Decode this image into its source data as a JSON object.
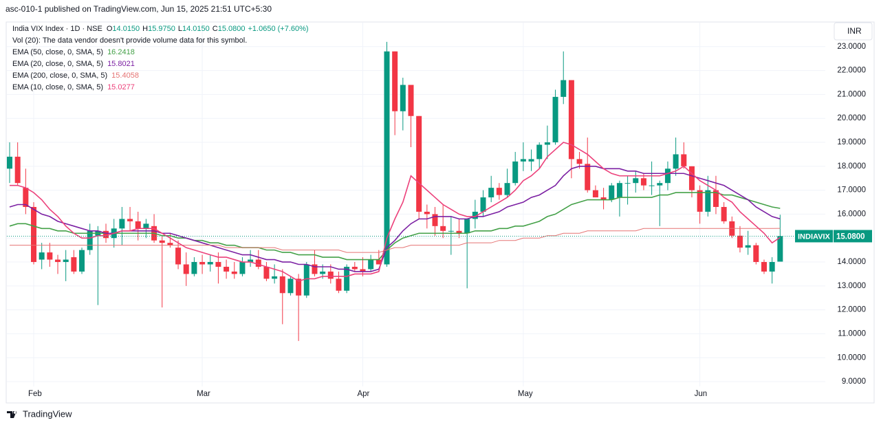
{
  "header": {
    "published": "asc-010-1 published on TradingView.com, Jun 15, 2025 21:51 UTC+5:30"
  },
  "footer": {
    "brand": "TradingView"
  },
  "chart_data": {
    "type": "candlestick",
    "symbol": "India VIX Index · 1D · NSE",
    "ohlc_legend": [
      {
        "label": "O",
        "value": "14.0150"
      },
      {
        "label": "H",
        "value": "15.9750"
      },
      {
        "label": "L",
        "value": "14.0150"
      },
      {
        "label": "C",
        "value": "15.0800"
      }
    ],
    "change": "+1.0650 (+7.60%)",
    "volume_note": "Vol (20): The data vendor doesn't provide volume data for this symbol.",
    "currency": "INR",
    "price_tag": {
      "symbol": "INDIAVIX",
      "value": "15.0800"
    },
    "up_color": "#089981",
    "down_color": "#f23645",
    "categories": [
      null,
      null,
      null,
      "Feb",
      null,
      null,
      null,
      null,
      null,
      null,
      null,
      null,
      null,
      null,
      null,
      null,
      null,
      null,
      null,
      null,
      null,
      null,
      null,
      null,
      "Mar",
      null,
      null,
      null,
      null,
      null,
      null,
      null,
      null,
      null,
      null,
      null,
      null,
      null,
      null,
      null,
      null,
      null,
      null,
      null,
      "Apr",
      null,
      null,
      null,
      null,
      null,
      null,
      null,
      null,
      null,
      null,
      null,
      null,
      null,
      null,
      null,
      null,
      null,
      null,
      null,
      "May",
      null,
      null,
      null,
      null,
      null,
      null,
      null,
      null,
      null,
      null,
      null,
      null,
      null,
      null,
      null,
      null,
      null,
      null,
      null,
      null,
      null,
      "Jun",
      null,
      null,
      null,
      null,
      null,
      null,
      null,
      null,
      null,
      null
    ],
    "open": [
      17.9,
      18.4,
      17.1,
      16.3,
      14.1,
      14.4,
      14.1,
      14.0,
      14.2,
      13.6,
      14.5,
      15.1,
      15.3,
      15.0,
      15.4,
      15.8,
      15.7,
      15.4,
      15.5,
      14.9,
      14.8,
      14.6,
      13.9,
      13.5,
      14.0,
      13.9,
      14.0,
      13.8,
      13.6,
      13.5,
      14.0,
      14.1,
      13.8,
      13.3,
      13.4,
      12.7,
      13.3,
      12.6,
      13.9,
      13.5,
      13.6,
      13.3,
      12.8,
      13.8,
      13.7,
      13.7,
      14.1,
      13.9,
      22.8,
      20.3,
      21.4,
      20.1,
      16.1,
      16.0,
      15.5,
      15.3,
      15.3,
      15.2,
      15.8,
      16.1,
      16.7,
      17.1,
      16.8,
      17.3,
      18.2,
      18.2,
      18.3,
      18.9,
      19.0,
      20.9,
      21.6,
      18.3,
      18.1,
      17.0,
      16.7,
      16.6,
      16.7,
      17.3,
      17.3,
      17.5,
      17.2,
      17.2,
      17.3,
      17.9,
      18.5,
      18.0,
      17.0,
      16.1,
      17.0,
      16.3,
      15.7,
      15.1,
      14.6,
      14.7,
      14.0,
      13.6,
      14.015
    ],
    "high": [
      19.0,
      19.0,
      17.9,
      16.5,
      14.8,
      14.8,
      14.3,
      14.5,
      14.5,
      14.6,
      15.6,
      15.5,
      15.6,
      15.8,
      16.3,
      16.3,
      16.1,
      15.8,
      16.0,
      15.1,
      15.2,
      14.9,
      14.4,
      14.2,
      14.3,
      14.3,
      14.4,
      14.1,
      14.0,
      14.2,
      14.5,
      14.5,
      14.0,
      13.9,
      13.7,
      13.4,
      13.5,
      14.0,
      14.5,
      13.9,
      13.9,
      13.6,
      13.9,
      14.0,
      14.2,
      14.3,
      14.5,
      23.2,
      22.8,
      21.7,
      21.4,
      20.1,
      16.4,
      16.3,
      16.4,
      15.9,
      15.8,
      15.8,
      16.6,
      17.0,
      17.6,
      17.3,
      17.9,
      18.6,
      19.0,
      18.7,
      19.0,
      19.7,
      21.2,
      22.8,
      21.6,
      18.6,
      19.2,
      17.2,
      17.1,
      17.3,
      17.4,
      17.6,
      17.8,
      17.7,
      18.2,
      17.4,
      18.2,
      19.2,
      19.0,
      18.0,
      17.2,
      17.6,
      17.6,
      16.5,
      15.9,
      15.5,
      15.3,
      14.8,
      14.1,
      14.2,
      15.975
    ],
    "low": [
      17.3,
      17.2,
      16.0,
      13.9,
      13.7,
      13.8,
      13.5,
      13.2,
      13.5,
      13.5,
      14.3,
      12.2,
      14.8,
      14.6,
      14.7,
      15.3,
      14.9,
      15.0,
      14.8,
      12.1,
      14.6,
      13.7,
      13.0,
      13.4,
      13.5,
      13.6,
      13.1,
      13.3,
      13.3,
      13.4,
      13.8,
      13.7,
      13.2,
      13.1,
      11.4,
      12.6,
      10.7,
      12.5,
      13.4,
      13.3,
      13.1,
      12.7,
      12.7,
      13.6,
      13.4,
      13.6,
      13.9,
      13.8,
      19.3,
      19.5,
      18.8,
      15.8,
      15.4,
      15.1,
      15.0,
      14.3,
      15.0,
      12.9,
      15.4,
      15.9,
      16.5,
      16.6,
      16.7,
      17.2,
      17.8,
      17.8,
      17.9,
      18.3,
      18.9,
      20.6,
      17.5,
      17.9,
      16.9,
      16.7,
      16.2,
      16.5,
      15.9,
      16.4,
      16.9,
      17.0,
      16.8,
      15.5,
      17.0,
      17.6,
      17.9,
      16.7,
      15.6,
      15.9,
      16.0,
      15.6,
      15.0,
      14.4,
      14.3,
      13.9,
      13.5,
      13.1,
      14.015
    ],
    "close": [
      18.4,
      17.3,
      16.3,
      14.0,
      14.4,
      14.1,
      14.0,
      14.1,
      13.6,
      14.5,
      15.3,
      15.3,
      15.0,
      15.4,
      15.8,
      15.7,
      15.4,
      15.6,
      14.9,
      14.8,
      14.7,
      13.9,
      13.5,
      14.0,
      13.9,
      14.0,
      13.8,
      13.6,
      13.5,
      14.0,
      14.1,
      13.8,
      13.3,
      13.4,
      12.7,
      13.3,
      12.6,
      13.9,
      13.5,
      13.6,
      13.3,
      12.8,
      13.8,
      13.7,
      13.6,
      14.1,
      13.9,
      22.8,
      20.3,
      21.4,
      20.1,
      16.1,
      16.0,
      15.5,
      15.3,
      15.3,
      15.2,
      15.8,
      16.1,
      16.7,
      17.1,
      16.8,
      17.3,
      18.2,
      18.3,
      18.3,
      18.9,
      19.0,
      20.9,
      21.6,
      18.3,
      18.1,
      17.0,
      16.7,
      16.6,
      17.2,
      17.3,
      17.3,
      17.5,
      17.2,
      17.2,
      17.3,
      17.9,
      18.5,
      18.0,
      17.0,
      16.1,
      17.0,
      16.3,
      15.7,
      15.1,
      14.6,
      14.7,
      14.0,
      13.6,
      14.0,
      15.08
    ],
    "series": [
      {
        "name": "EMA (50, close, 0, SMA, 5)",
        "legend_value": "16.2418",
        "color": "#43a047",
        "width": 1.6,
        "values": [
          15.5,
          15.6,
          15.6,
          15.5,
          15.4,
          15.4,
          15.3,
          15.3,
          15.2,
          15.2,
          15.2,
          15.2,
          15.2,
          15.2,
          15.2,
          15.2,
          15.2,
          15.2,
          15.2,
          15.1,
          15.1,
          15.0,
          15.0,
          14.9,
          14.9,
          14.8,
          14.8,
          14.7,
          14.7,
          14.6,
          14.6,
          14.6,
          14.5,
          14.5,
          14.4,
          14.4,
          14.3,
          14.3,
          14.3,
          14.2,
          14.2,
          14.2,
          14.1,
          14.1,
          14.1,
          14.1,
          14.1,
          14.5,
          14.8,
          15.0,
          15.1,
          15.2,
          15.2,
          15.2,
          15.2,
          15.2,
          15.2,
          15.2,
          15.3,
          15.3,
          15.3,
          15.4,
          15.4,
          15.5,
          15.5,
          15.6,
          15.7,
          15.9,
          16.0,
          16.2,
          16.4,
          16.5,
          16.6,
          16.6,
          16.6,
          16.6,
          16.7,
          16.7,
          16.7,
          16.7,
          16.7,
          16.8,
          16.8,
          16.9,
          16.9,
          16.9,
          16.9,
          16.9,
          16.9,
          16.8,
          16.8,
          16.7,
          16.6,
          16.5,
          16.4,
          16.3,
          16.2418
        ]
      },
      {
        "name": "EMA (20, close, 0, SMA, 5)",
        "legend_value": "15.8021",
        "color": "#7b1fa2",
        "width": 1.6,
        "values": [
          16.3,
          16.4,
          16.4,
          16.2,
          16.0,
          15.9,
          15.7,
          15.6,
          15.5,
          15.4,
          15.3,
          15.3,
          15.2,
          15.2,
          15.3,
          15.3,
          15.3,
          15.3,
          15.3,
          15.2,
          15.2,
          15.1,
          15.0,
          14.9,
          14.8,
          14.7,
          14.6,
          14.5,
          14.4,
          14.3,
          14.3,
          14.2,
          14.1,
          14.1,
          14.0,
          14.0,
          13.9,
          13.9,
          13.8,
          13.8,
          13.8,
          13.7,
          13.7,
          13.6,
          13.6,
          13.6,
          13.7,
          14.6,
          14.9,
          15.3,
          15.6,
          15.8,
          15.8,
          15.9,
          15.9,
          15.9,
          15.8,
          15.8,
          15.9,
          15.9,
          16.0,
          16.1,
          16.3,
          16.4,
          16.5,
          16.7,
          16.8,
          17.0,
          17.2,
          17.6,
          17.9,
          18.0,
          18.0,
          18.0,
          17.9,
          17.9,
          17.9,
          17.8,
          17.8,
          17.7,
          17.7,
          17.7,
          17.7,
          17.7,
          17.7,
          17.6,
          17.5,
          17.4,
          17.3,
          17.2,
          17.0,
          16.8,
          16.6,
          16.3,
          16.1,
          15.9,
          15.8021
        ]
      },
      {
        "name": "EMA (200, close, 0, SMA, 5)",
        "legend_value": "15.4058",
        "color": "#e57373",
        "width": 1,
        "values": [
          14.7,
          14.7,
          14.7,
          14.7,
          14.7,
          14.7,
          14.7,
          14.7,
          14.7,
          14.7,
          14.7,
          14.7,
          14.7,
          14.7,
          14.7,
          14.7,
          14.7,
          14.7,
          14.7,
          14.7,
          14.7,
          14.7,
          14.7,
          14.7,
          14.7,
          14.7,
          14.7,
          14.6,
          14.6,
          14.6,
          14.6,
          14.6,
          14.6,
          14.6,
          14.5,
          14.5,
          14.5,
          14.5,
          14.5,
          14.5,
          14.5,
          14.5,
          14.4,
          14.4,
          14.4,
          14.4,
          14.4,
          14.5,
          14.6,
          14.6,
          14.7,
          14.7,
          14.7,
          14.7,
          14.7,
          14.7,
          14.7,
          14.8,
          14.8,
          14.8,
          14.8,
          14.9,
          14.9,
          14.9,
          15.0,
          15.0,
          15.0,
          15.1,
          15.1,
          15.2,
          15.2,
          15.2,
          15.3,
          15.3,
          15.3,
          15.3,
          15.3,
          15.3,
          15.3,
          15.4,
          15.4,
          15.4,
          15.4,
          15.4,
          15.4,
          15.4,
          15.4,
          15.4,
          15.4,
          15.4,
          15.4,
          15.4,
          15.4,
          15.4,
          15.4,
          15.4,
          15.4058
        ]
      },
      {
        "name": "EMA (10, close, 0, SMA, 5)",
        "legend_value": "15.0277",
        "color": "#ec407a",
        "width": 1.6,
        "values": [
          17.2,
          17.2,
          17.1,
          16.9,
          16.6,
          16.2,
          15.9,
          15.5,
          15.2,
          15.0,
          15.0,
          15.1,
          15.1,
          15.2,
          15.3,
          15.3,
          15.4,
          15.4,
          15.4,
          15.2,
          15.0,
          14.8,
          14.6,
          14.5,
          14.4,
          14.3,
          14.2,
          14.2,
          14.1,
          14.0,
          14.0,
          13.9,
          13.8,
          13.7,
          13.6,
          13.4,
          13.2,
          13.3,
          13.3,
          13.4,
          13.4,
          13.4,
          13.4,
          13.5,
          13.5,
          13.5,
          13.6,
          15.0,
          15.8,
          16.5,
          17.6,
          17.3,
          17.0,
          16.7,
          16.4,
          16.2,
          16.0,
          15.9,
          15.9,
          16.1,
          16.3,
          16.5,
          16.7,
          17.0,
          17.4,
          17.6,
          17.9,
          18.4,
          18.7,
          19.0,
          18.9,
          18.7,
          18.5,
          18.2,
          17.9,
          17.7,
          17.6,
          17.6,
          17.6,
          17.6,
          17.6,
          17.6,
          17.7,
          17.8,
          18.0,
          17.7,
          17.4,
          17.2,
          17.0,
          16.7,
          16.5,
          16.1,
          15.8,
          15.5,
          15.2,
          14.8,
          15.0277
        ]
      }
    ],
    "ylim": [
      8.8,
      24.0
    ],
    "yticks": [
      {
        "value": 9,
        "label": "9.0000"
      },
      {
        "value": 10,
        "label": "10.0000"
      },
      {
        "value": 11,
        "label": "11.0000"
      },
      {
        "value": 12,
        "label": "12.0000"
      },
      {
        "value": 13,
        "label": "13.0000"
      },
      {
        "value": 14,
        "label": "14.0000"
      },
      {
        "value": 15,
        "label": "15.0000"
      },
      {
        "value": 16,
        "label": "16.0000"
      },
      {
        "value": 17,
        "label": "17.0000"
      },
      {
        "value": 18,
        "label": "18.0000"
      },
      {
        "value": 19,
        "label": "19.0000"
      },
      {
        "value": 20,
        "label": "20.0000"
      },
      {
        "value": 21,
        "label": "21.0000"
      },
      {
        "value": 22,
        "label": "22.0000"
      },
      {
        "value": 23,
        "label": "23.0000"
      }
    ],
    "grid": true
  }
}
